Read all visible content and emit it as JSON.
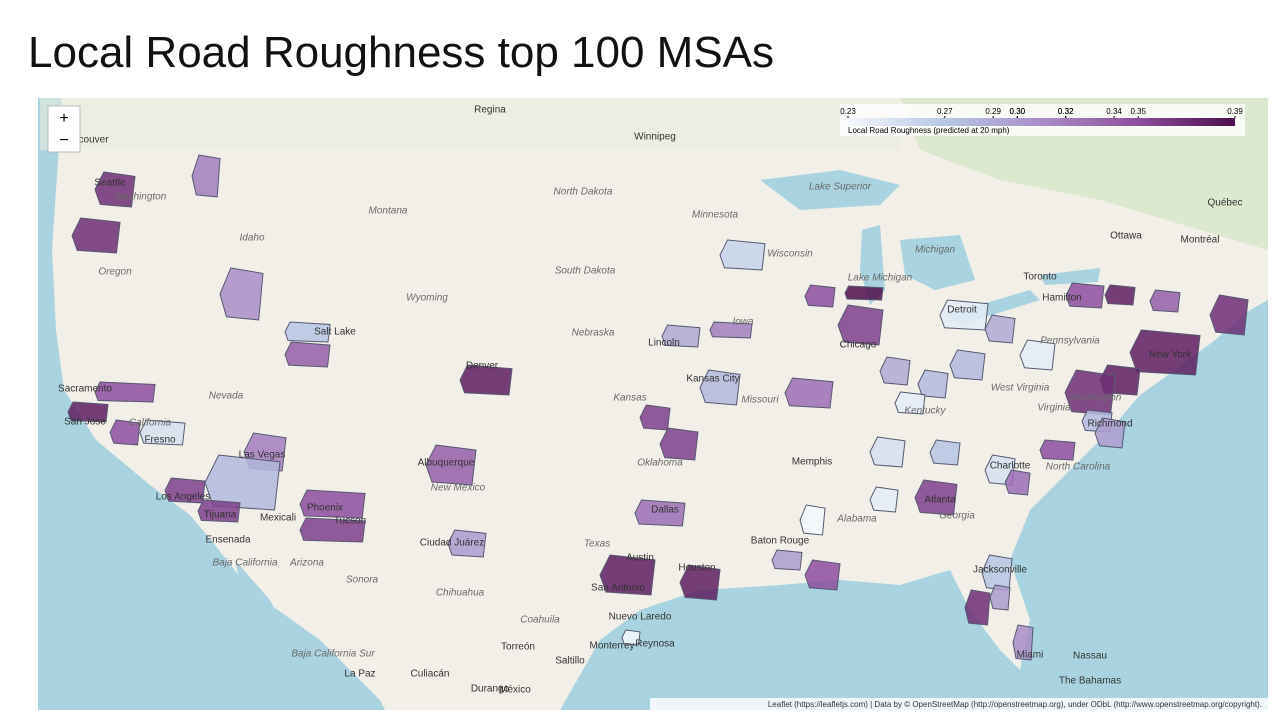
{
  "title": "Local Road Roughness top 100 MSAs",
  "legend": {
    "title": "Local Road Roughness (predicted at 20 mph)",
    "lim": [
      0.23,
      0.39
    ],
    "ticks": [
      0.23,
      0.27,
      0.29,
      {
        "value": 0.3,
        "label": "0.30"
      },
      {
        "value": 0.3,
        "label": "0.30"
      },
      0.32,
      0.32,
      0.34,
      0.35,
      0.39
    ],
    "colors": [
      "#f5f8fc",
      "#b6c6e2",
      "#a98ec6",
      "#8c4f9c",
      "#4d0f4a"
    ]
  },
  "zoom": {
    "in": "+",
    "out": "−"
  },
  "attribution": "Leaflet (https://leafletjs.com) | Data by © OpenStreetMap (http://openstreetmap.org), under ODbL (http://www.openstreetmap.org/copyright).",
  "places": [
    "Regina",
    "Winnipeg",
    "Vancouver",
    "Seattle",
    "Washington",
    "Montana",
    "Idaho",
    "Oregon",
    "Wyoming",
    "North Dakota",
    "Minnesota",
    "South Dakota",
    "Nebraska",
    "Iowa",
    "Wisconsin",
    "Michigan",
    "Lake Michigan",
    "Lake Superior",
    "Ottawa",
    "Montréal",
    "Québec",
    "Toronto",
    "Hamilton",
    "Detroit",
    "Chicago",
    "Salt Lake",
    "Denver",
    "Kansas City",
    "Kansas",
    "Missouri",
    "Nevada",
    "California",
    "San Jose",
    "Sacramento",
    "Fresno",
    "Las Vegas",
    "Los Angeles",
    "Tijuana",
    "Mexicali",
    "Ensenada",
    "Baja California",
    "Phoenix",
    "Tucson",
    "Arizona",
    "Albuquerque",
    "New Mexico",
    "Ciudad Juárez",
    "Sonora",
    "Chihuahua",
    "Texas",
    "Oklahoma",
    "Dallas",
    "Austin",
    "San Antonio",
    "Houston",
    "Baton Rouge",
    "Memphis",
    "Alabama",
    "Atlanta",
    "Georgia",
    "Charlotte",
    "North Carolina",
    "Pennsylvania",
    "New York",
    "Washington",
    "Richmond",
    "West Virginia",
    "Kentucky",
    "Virginia",
    "Jacksonville",
    "Miami",
    "Nassau",
    "The Bahamas",
    "Nuevo Laredo",
    "Reynosa",
    "Monterrey",
    "Torreón",
    "Saltillo",
    "Durango",
    "México",
    "Culiacán",
    "La Paz",
    "Baja California Sur",
    "Coahuila",
    "Lincoln"
  ],
  "msa_roughness": [
    0.37,
    0.37,
    0.32,
    0.31,
    0.27,
    0.34,
    0.35,
    0.38,
    0.35,
    0.25,
    0.32,
    0.28,
    0.36,
    0.36,
    0.35,
    0.36,
    0.34,
    0.3,
    0.38,
    0.29,
    0.32,
    0.26,
    0.28,
    0.36,
    0.36,
    0.33,
    0.38,
    0.38,
    0.3,
    0.35,
    0.33,
    0.36,
    0.39,
    0.35,
    0.24,
    0.29,
    0.28,
    0.28,
    0.24,
    0.24,
    0.29,
    0.35,
    0.38,
    0.34,
    0.38,
    0.37,
    0.38,
    0.37,
    0.28,
    0.3,
    0.25,
    0.27,
    0.25,
    0.35,
    0.36,
    0.24,
    0.23,
    0.33,
    0.27,
    0.37,
    0.3,
    0.31,
    0.23
  ]
}
